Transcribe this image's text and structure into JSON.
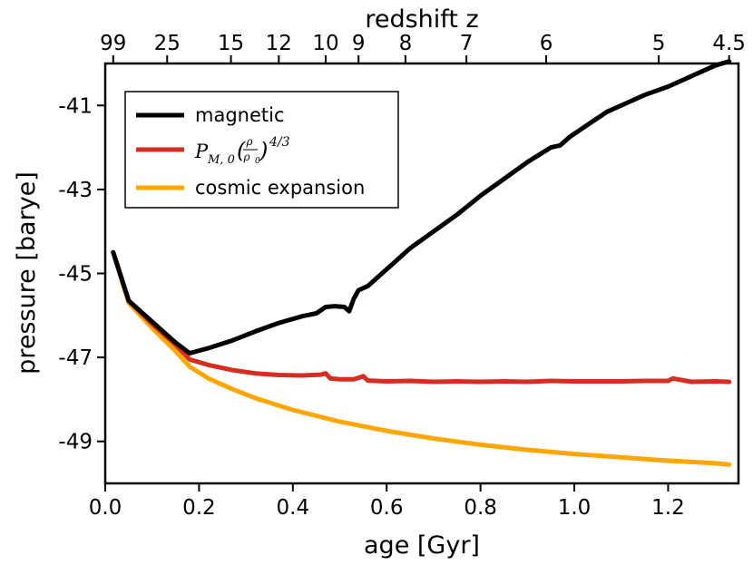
{
  "chart_data": {
    "type": "line",
    "xlabel": "age [Gyr]",
    "ylabel": "pressure [barye]",
    "top_xlabel": "redshift z",
    "xlim": [
      0.0,
      1.35
    ],
    "ylim": [
      -50.0,
      -40.0
    ],
    "x_ticks": [
      0.0,
      0.2,
      0.4,
      0.6,
      0.8,
      1.0,
      1.2
    ],
    "x_tick_labels": [
      "0.0",
      "0.2",
      "0.4",
      "0.6",
      "0.8",
      "1.0",
      "1.2"
    ],
    "y_ticks": [
      -41,
      -43,
      -45,
      -47,
      -49
    ],
    "y_tick_labels": [
      "-41",
      "-43",
      "-45",
      "-47",
      "-49"
    ],
    "top_ticks": [
      {
        "label": "99",
        "age": 0.017
      },
      {
        "label": "25",
        "age": 0.132
      },
      {
        "label": "15",
        "age": 0.268
      },
      {
        "label": "12",
        "age": 0.37
      },
      {
        "label": "10",
        "age": 0.47
      },
      {
        "label": "9",
        "age": 0.54
      },
      {
        "label": "8",
        "age": 0.64
      },
      {
        "label": "7",
        "age": 0.77
      },
      {
        "label": "6",
        "age": 0.94
      },
      {
        "label": "5",
        "age": 1.18
      },
      {
        "label": "4.5",
        "age": 1.33
      }
    ],
    "legend": {
      "position": "top-left",
      "entries": [
        {
          "label": "magnetic",
          "series": "magnetic"
        },
        {
          "label": "P_{M,0}(ρ/ρ0)^{4/3}",
          "series": "adiabatic",
          "math": {
            "P": "P",
            "sub": "M, 0",
            "num": "ρ",
            "den": "ρ",
            "den_sub": "0",
            "exp": "4/3"
          }
        },
        {
          "label": "cosmic expansion",
          "series": "cosmic"
        }
      ]
    },
    "series": [
      {
        "name": "magnetic",
        "color": "#000000",
        "x": [
          0.017,
          0.05,
          0.1,
          0.15,
          0.18,
          0.22,
          0.27,
          0.32,
          0.37,
          0.42,
          0.45,
          0.47,
          0.49,
          0.51,
          0.52,
          0.53,
          0.54,
          0.55,
          0.56,
          0.58,
          0.6,
          0.62,
          0.65,
          0.7,
          0.75,
          0.8,
          0.85,
          0.9,
          0.95,
          0.97,
          0.99,
          1.03,
          1.07,
          1.11,
          1.15,
          1.2,
          1.25,
          1.3,
          1.33
        ],
        "y": [
          -44.5,
          -45.65,
          -46.15,
          -46.65,
          -46.9,
          -46.78,
          -46.6,
          -46.38,
          -46.18,
          -46.02,
          -45.95,
          -45.8,
          -45.78,
          -45.8,
          -45.9,
          -45.6,
          -45.4,
          -45.35,
          -45.3,
          -45.1,
          -44.9,
          -44.7,
          -44.4,
          -44.0,
          -43.6,
          -43.15,
          -42.75,
          -42.35,
          -42.0,
          -41.95,
          -41.75,
          -41.45,
          -41.15,
          -40.95,
          -40.75,
          -40.55,
          -40.3,
          -40.05,
          -39.95
        ]
      },
      {
        "name": "adiabatic",
        "color": "#d62d20",
        "x": [
          0.017,
          0.05,
          0.1,
          0.15,
          0.18,
          0.22,
          0.27,
          0.32,
          0.37,
          0.42,
          0.46,
          0.47,
          0.48,
          0.5,
          0.53,
          0.55,
          0.56,
          0.6,
          0.65,
          0.7,
          0.75,
          0.8,
          0.85,
          0.9,
          0.95,
          1.0,
          1.05,
          1.1,
          1.15,
          1.2,
          1.21,
          1.25,
          1.3,
          1.33
        ],
        "y": [
          -44.5,
          -45.65,
          -46.2,
          -46.7,
          -47.05,
          -47.18,
          -47.3,
          -47.38,
          -47.42,
          -47.43,
          -47.41,
          -47.38,
          -47.5,
          -47.52,
          -47.52,
          -47.45,
          -47.55,
          -47.57,
          -47.56,
          -47.58,
          -47.57,
          -47.58,
          -47.57,
          -47.58,
          -47.56,
          -47.57,
          -47.57,
          -47.57,
          -47.56,
          -47.56,
          -47.5,
          -47.58,
          -47.57,
          -47.58
        ]
      },
      {
        "name": "cosmic",
        "color": "#ffa600",
        "x": [
          0.017,
          0.05,
          0.1,
          0.15,
          0.18,
          0.22,
          0.27,
          0.32,
          0.4,
          0.5,
          0.6,
          0.7,
          0.8,
          0.9,
          1.0,
          1.1,
          1.2,
          1.3,
          1.33
        ],
        "y": [
          -44.5,
          -45.7,
          -46.3,
          -46.85,
          -47.22,
          -47.5,
          -47.75,
          -47.97,
          -48.25,
          -48.53,
          -48.75,
          -48.93,
          -49.08,
          -49.2,
          -49.3,
          -49.38,
          -49.46,
          -49.52,
          -49.55
        ]
      }
    ]
  }
}
